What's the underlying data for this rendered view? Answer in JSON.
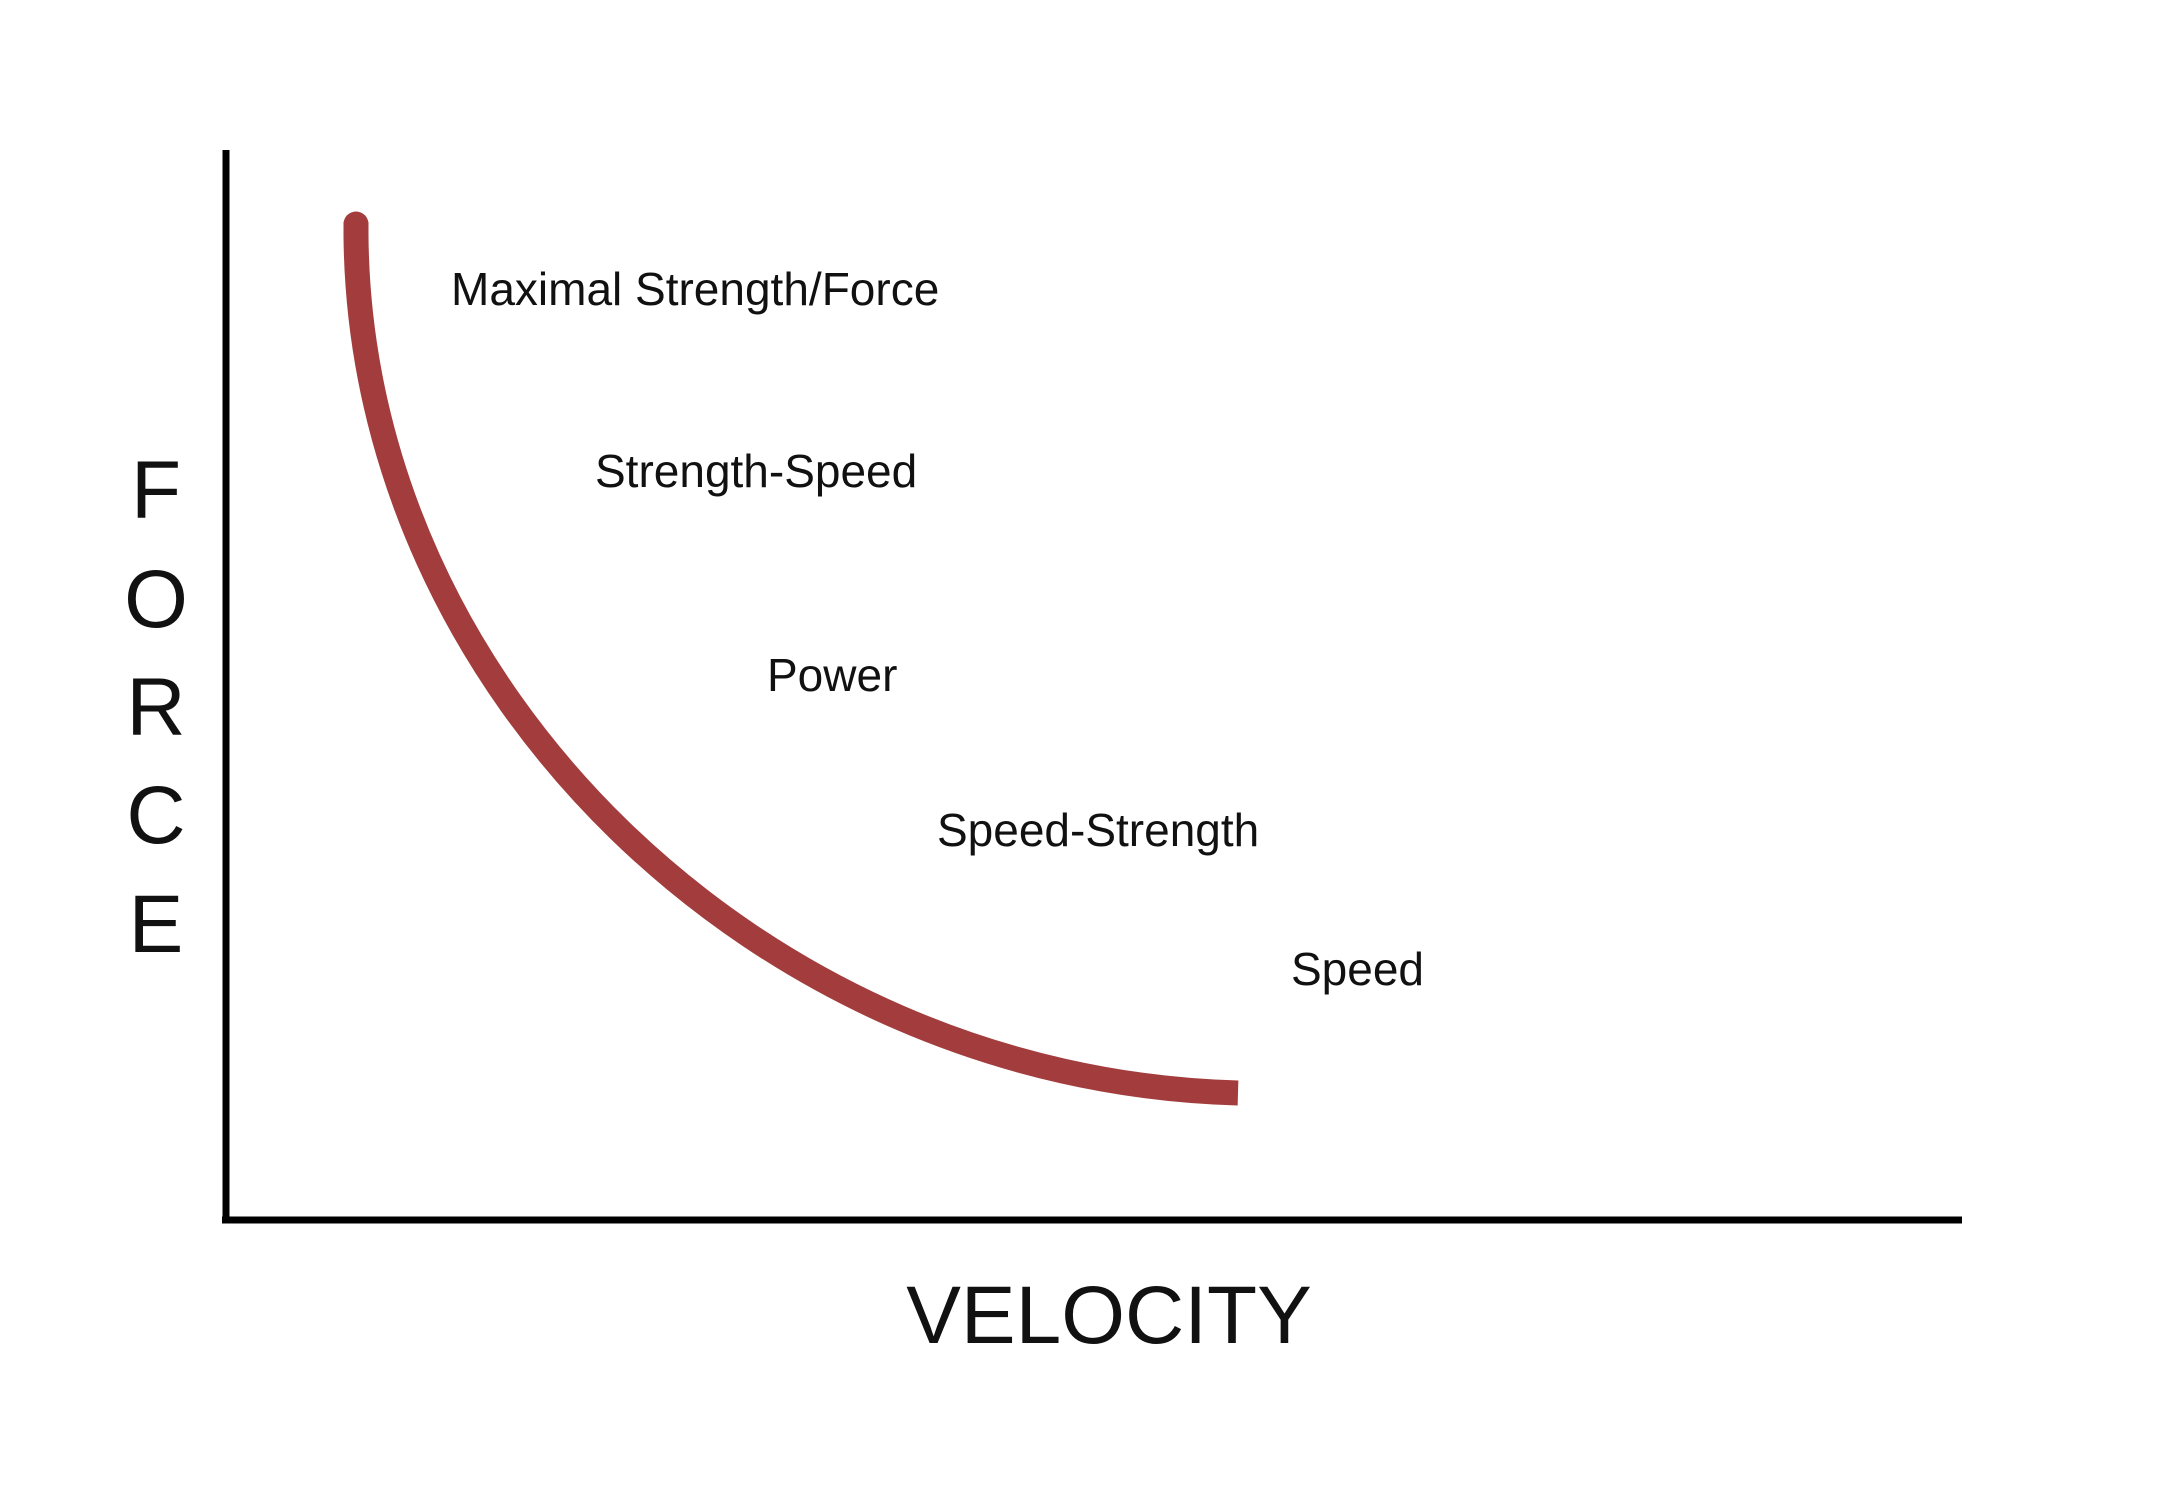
{
  "axes": {
    "x_title": "VELOCITY",
    "y_title_letters": [
      "F",
      "O",
      "R",
      "C",
      "E"
    ]
  },
  "curve": {
    "color": "#a33d3d",
    "shape": "inverse force-velocity curve"
  },
  "axis_color": "#000000",
  "zone_labels": [
    "Maximal Strength/Force",
    "Strength-Speed",
    "Power",
    "Speed-Strength",
    "Speed"
  ]
}
